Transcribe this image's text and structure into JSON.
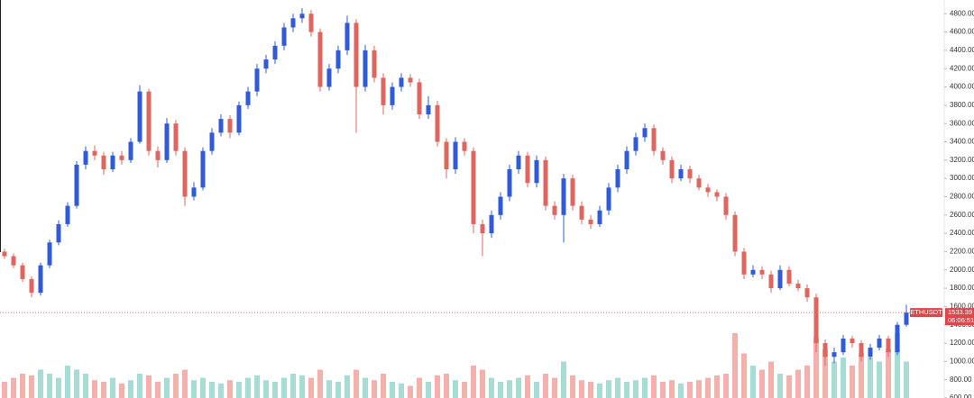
{
  "chart_data": {
    "type": "candlestick",
    "up_color": "#2f5bd8",
    "down_color": "#e0655f",
    "volume_up_color": "#a6dcd4",
    "volume_down_color": "#f4b0ab",
    "ylim": [
      600,
      4950
    ],
    "yticks": [
      {
        "value": 600,
        "label": "600.00"
      },
      {
        "value": 800,
        "label": "800.00"
      },
      {
        "value": 1000,
        "label": "1000.00"
      },
      {
        "value": 1200,
        "label": "1200.00"
      },
      {
        "value": 1400,
        "label": "1400.00"
      },
      {
        "value": 1600,
        "label": "1600.00"
      },
      {
        "value": 1800,
        "label": "1800.00"
      },
      {
        "value": 2000,
        "label": "2000.00"
      },
      {
        "value": 2200,
        "label": "2200.00"
      },
      {
        "value": 2400,
        "label": "2400.00"
      },
      {
        "value": 2600,
        "label": "2600.00"
      },
      {
        "value": 2800,
        "label": "2800.00"
      },
      {
        "value": 3000,
        "label": "3000.00"
      },
      {
        "value": 3200,
        "label": "3200.00"
      },
      {
        "value": 3400,
        "label": "3400.00"
      },
      {
        "value": 3600,
        "label": "3600.00"
      },
      {
        "value": 3800,
        "label": "3800.00"
      },
      {
        "value": 4000,
        "label": "4000.00"
      },
      {
        "value": 4200,
        "label": "4200.00"
      },
      {
        "value": 4400,
        "label": "4400.00"
      },
      {
        "value": 4600,
        "label": "4600.00"
      },
      {
        "value": 4800,
        "label": "4800.00"
      }
    ],
    "volume_ylim": [
      0,
      200
    ],
    "last_price": {
      "symbol": "ETHUSDT",
      "value": 1533.39,
      "countdown": "06:06:51"
    },
    "candles": [
      [
        2200,
        2230,
        2120,
        2150
      ],
      [
        2150,
        2180,
        2020,
        2050
      ],
      [
        2050,
        2080,
        1870,
        1900
      ],
      [
        1900,
        1930,
        1700,
        1750
      ],
      [
        1750,
        2080,
        1720,
        2050
      ],
      [
        2050,
        2330,
        2020,
        2300
      ],
      [
        2300,
        2540,
        2270,
        2500
      ],
      [
        2500,
        2740,
        2470,
        2700
      ],
      [
        2700,
        3190,
        2670,
        3150
      ],
      [
        3150,
        3350,
        3100,
        3300
      ],
      [
        3300,
        3360,
        3200,
        3250
      ],
      [
        3250,
        3290,
        3040,
        3100
      ],
      [
        3100,
        3290,
        3070,
        3250
      ],
      [
        3250,
        3300,
        3150,
        3200
      ],
      [
        3200,
        3440,
        3170,
        3400
      ],
      [
        3400,
        4020,
        3380,
        3950
      ],
      [
        3950,
        3980,
        3250,
        3300
      ],
      [
        3300,
        3350,
        3120,
        3200
      ],
      [
        3200,
        3660,
        3170,
        3600
      ],
      [
        3600,
        3640,
        3250,
        3300
      ],
      [
        3300,
        3340,
        2700,
        2800
      ],
      [
        2800,
        2960,
        2760,
        2900
      ],
      [
        2900,
        3340,
        2870,
        3300
      ],
      [
        3300,
        3550,
        3260,
        3500
      ],
      [
        3500,
        3700,
        3460,
        3650
      ],
      [
        3650,
        3690,
        3440,
        3500
      ],
      [
        3500,
        3840,
        3470,
        3800
      ],
      [
        3800,
        4000,
        3760,
        3950
      ],
      [
        3950,
        4250,
        3900,
        4200
      ],
      [
        4200,
        4350,
        4150,
        4300
      ],
      [
        4300,
        4500,
        4250,
        4450
      ],
      [
        4450,
        4700,
        4400,
        4650
      ],
      [
        4650,
        4800,
        4600,
        4750
      ],
      [
        4750,
        4860,
        4700,
        4800
      ],
      [
        4800,
        4840,
        4550,
        4600
      ],
      [
        4600,
        4640,
        3950,
        4000
      ],
      [
        4000,
        4250,
        3960,
        4200
      ],
      [
        4200,
        4450,
        4150,
        4400
      ],
      [
        4400,
        4780,
        4350,
        4700
      ],
      [
        4700,
        4740,
        3500,
        4000
      ],
      [
        4000,
        4460,
        3950,
        4400
      ],
      [
        4400,
        4450,
        4050,
        4100
      ],
      [
        4100,
        4150,
        3700,
        3800
      ],
      [
        3800,
        4050,
        3750,
        4000
      ],
      [
        4000,
        4150,
        3950,
        4100
      ],
      [
        4100,
        4140,
        4000,
        4050
      ],
      [
        4050,
        4090,
        3650,
        3700
      ],
      [
        3700,
        3900,
        3650,
        3800
      ],
      [
        3800,
        3850,
        3350,
        3400
      ],
      [
        3400,
        3440,
        3000,
        3100
      ],
      [
        3100,
        3450,
        3050,
        3400
      ],
      [
        3400,
        3440,
        3250,
        3300
      ],
      [
        3300,
        3340,
        2400,
        2500
      ],
      [
        2500,
        2550,
        2150,
        2400
      ],
      [
        2400,
        2650,
        2350,
        2600
      ],
      [
        2600,
        2850,
        2550,
        2800
      ],
      [
        2800,
        3150,
        2750,
        3100
      ],
      [
        3100,
        3300,
        3050,
        3250
      ],
      [
        3250,
        3290,
        2900,
        2950
      ],
      [
        2950,
        3250,
        2900,
        3200
      ],
      [
        3200,
        3240,
        2650,
        2700
      ],
      [
        2700,
        2750,
        2550,
        2600
      ],
      [
        2600,
        3050,
        2300,
        3000
      ],
      [
        3000,
        3040,
        2650,
        2700
      ],
      [
        2700,
        2750,
        2500,
        2550
      ],
      [
        2550,
        2600,
        2450,
        2500
      ],
      [
        2500,
        2700,
        2470,
        2650
      ],
      [
        2650,
        2950,
        2600,
        2900
      ],
      [
        2900,
        3150,
        2850,
        3100
      ],
      [
        3100,
        3350,
        3050,
        3300
      ],
      [
        3300,
        3500,
        3250,
        3450
      ],
      [
        3450,
        3600,
        3400,
        3550
      ],
      [
        3550,
        3590,
        3250,
        3300
      ],
      [
        3300,
        3340,
        3150,
        3200
      ],
      [
        3200,
        3240,
        2950,
        3000
      ],
      [
        3000,
        3150,
        2970,
        3100
      ],
      [
        3100,
        3140,
        2950,
        3000
      ],
      [
        3000,
        3040,
        2870,
        2900
      ],
      [
        2900,
        2940,
        2800,
        2850
      ],
      [
        2850,
        2880,
        2750,
        2800
      ],
      [
        2800,
        2840,
        2550,
        2600
      ],
      [
        2600,
        2640,
        2150,
        2200
      ],
      [
        2200,
        2240,
        1900,
        1950
      ],
      [
        1950,
        2050,
        1920,
        2000
      ],
      [
        2000,
        2040,
        1900,
        1950
      ],
      [
        1950,
        1990,
        1750,
        1800
      ],
      [
        1800,
        2050,
        1780,
        2000
      ],
      [
        2000,
        2040,
        1820,
        1850
      ],
      [
        1850,
        1890,
        1770,
        1800
      ],
      [
        1800,
        1840,
        1650,
        1700
      ],
      [
        1700,
        1740,
        1100,
        1200
      ],
      [
        1200,
        1240,
        950,
        1050
      ],
      [
        1050,
        1150,
        980,
        1100
      ],
      [
        1100,
        1290,
        1070,
        1250
      ],
      [
        1250,
        1280,
        1150,
        1200
      ],
      [
        1200,
        1230,
        1000,
        1050
      ],
      [
        1050,
        1190,
        1020,
        1150
      ],
      [
        1150,
        1290,
        1120,
        1250
      ],
      [
        1250,
        1280,
        1050,
        1100
      ],
      [
        1100,
        1430,
        1070,
        1400
      ],
      [
        1400,
        1620,
        1380,
        1533.39
      ]
    ],
    "volume": [
      20,
      25,
      30,
      28,
      35,
      30,
      25,
      40,
      35,
      30,
      22,
      20,
      25,
      18,
      22,
      30,
      28,
      20,
      25,
      30,
      35,
      22,
      25,
      20,
      18,
      22,
      20,
      25,
      28,
      22,
      20,
      25,
      30,
      28,
      25,
      35,
      22,
      20,
      28,
      35,
      25,
      22,
      30,
      20,
      18,
      15,
      25,
      20,
      28,
      30,
      22,
      20,
      40,
      35,
      25,
      20,
      22,
      25,
      28,
      20,
      30,
      25,
      45,
      28,
      22,
      20,
      18,
      22,
      25,
      20,
      22,
      25,
      28,
      20,
      22,
      18,
      20,
      22,
      25,
      28,
      30,
      80,
      55,
      40,
      35,
      45,
      30,
      28,
      35,
      40,
      75,
      60,
      45,
      50,
      40,
      55,
      50,
      45,
      60,
      80,
      45
    ]
  }
}
